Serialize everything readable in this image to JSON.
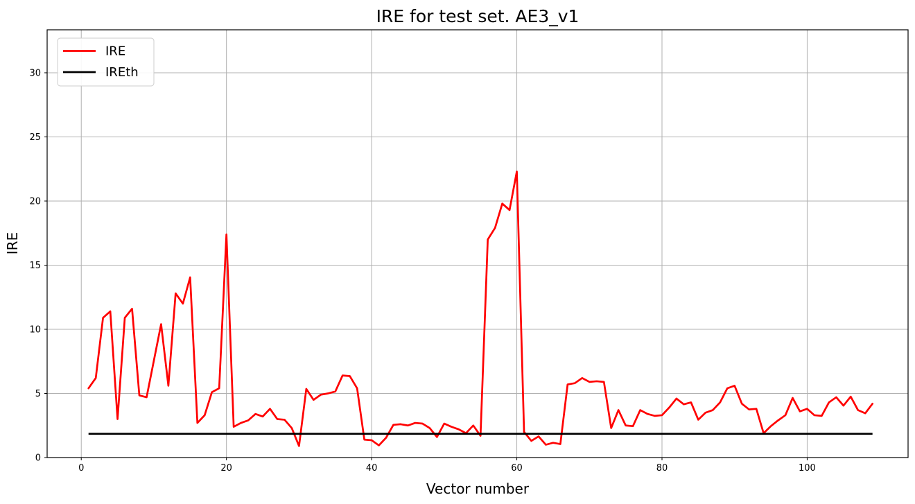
{
  "page": {
    "background_color": "#ffffff"
  },
  "chart_data": {
    "type": "line",
    "title": "IRE for test set. AE3_v1",
    "xlabel": "Vector number",
    "ylabel": "IRE",
    "grid": true,
    "grid_color": "#b0b0b0",
    "spine_color": "#000000",
    "xlim": [
      -4.7,
      113.9
    ],
    "ylim": [
      0,
      33.35
    ],
    "x_ticks": [
      0,
      20,
      40,
      60,
      80,
      100
    ],
    "y_ticks": [
      0,
      5,
      10,
      15,
      20,
      25,
      30
    ],
    "legend_position": "upper left",
    "legend": {
      "entries": [
        {
          "label": "IRE",
          "color": "#ff0000"
        },
        {
          "label": "IREth",
          "color": "#000000"
        }
      ]
    },
    "series": [
      {
        "name": "IRE",
        "color": "#ff0000",
        "line_width": 2.7,
        "x_start": 1,
        "x_step": 1,
        "values": [
          5.4,
          6.2,
          10.9,
          11.4,
          3.0,
          10.9,
          11.6,
          4.85,
          4.7,
          7.55,
          10.4,
          5.6,
          12.8,
          12.0,
          14.05,
          2.7,
          3.3,
          5.1,
          5.4,
          17.4,
          2.4,
          2.7,
          2.9,
          3.4,
          3.2,
          3.8,
          3.0,
          2.95,
          2.3,
          0.9,
          5.35,
          4.5,
          4.9,
          5.0,
          5.15,
          6.4,
          6.35,
          5.4,
          1.4,
          1.35,
          0.95,
          1.55,
          2.55,
          2.6,
          2.5,
          2.7,
          2.65,
          2.3,
          1.6,
          2.65,
          2.4,
          2.2,
          1.9,
          2.5,
          1.7,
          17.0,
          17.9,
          19.8,
          19.3,
          22.3,
          2.0,
          1.3,
          1.65,
          1.0,
          1.15,
          1.05,
          5.7,
          5.8,
          6.2,
          5.9,
          5.95,
          5.9,
          2.3,
          3.7,
          2.5,
          2.45,
          3.7,
          3.4,
          3.25,
          3.3,
          3.9,
          4.6,
          4.15,
          4.3,
          2.95,
          3.5,
          3.7,
          4.3,
          5.4,
          5.6,
          4.2,
          3.75,
          3.8,
          1.9,
          2.45,
          2.9,
          3.3,
          4.65,
          3.6,
          3.8,
          3.3,
          3.25,
          4.3,
          4.7,
          4.05,
          4.75,
          3.7,
          3.45,
          4.2
        ]
      },
      {
        "name": "IREth",
        "color": "#000000",
        "line_width": 2.7,
        "constant_value": 1.85,
        "x_start": 1,
        "x_end": 109
      }
    ]
  }
}
